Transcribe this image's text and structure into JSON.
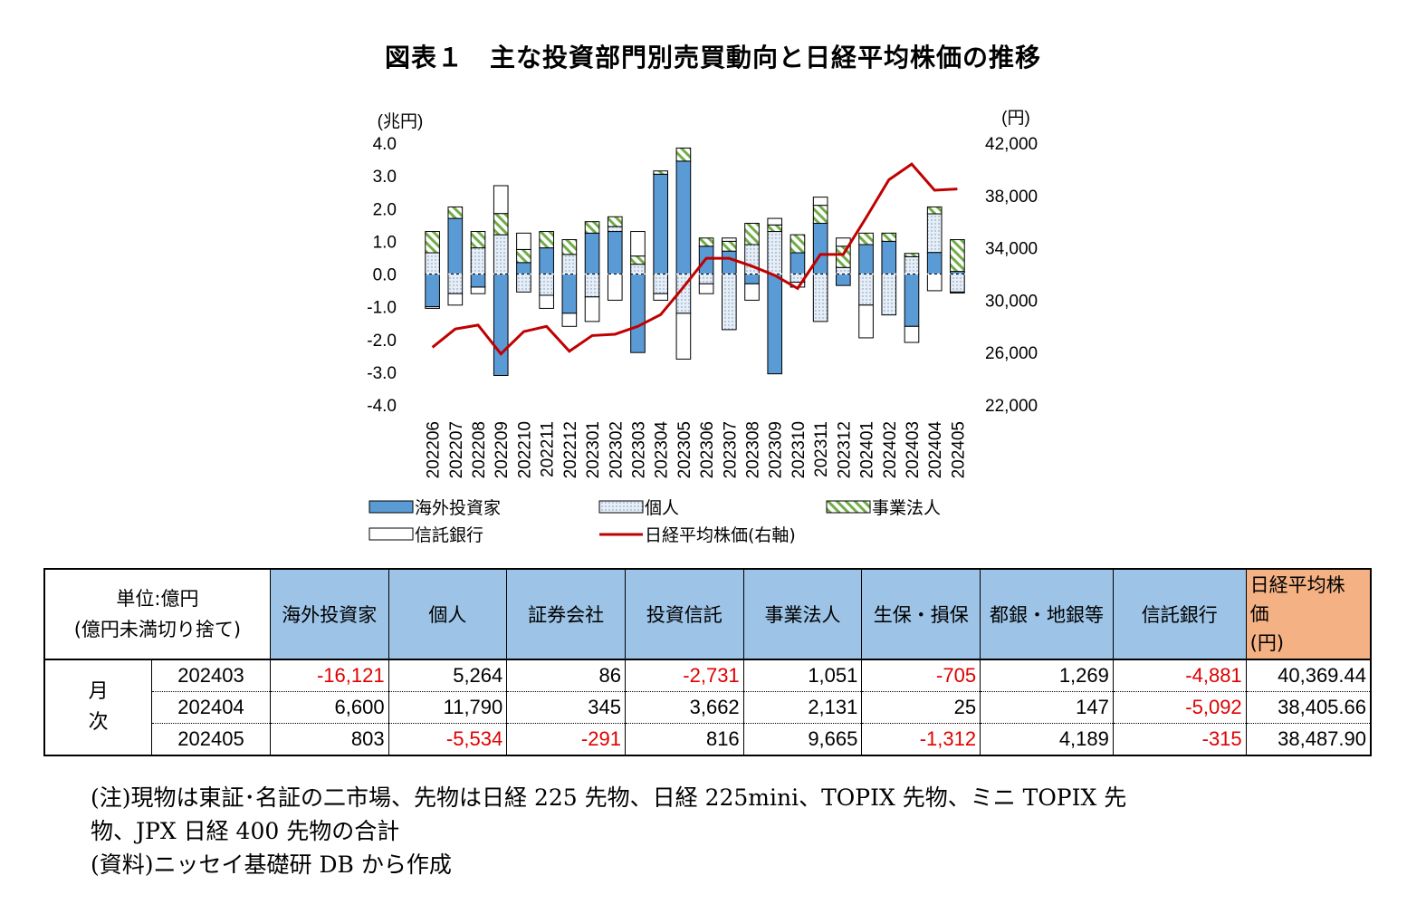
{
  "title": "図表１　主な投資部門別売買動向と日経平均株価の推移",
  "chart_data": {
    "type": "bar",
    "stacked": true,
    "y_left_unit": "(兆円)",
    "y_right_unit": "(円)",
    "ylim_left": [
      -4.0,
      4.0
    ],
    "ylim_right": [
      22000,
      42000
    ],
    "y_left_ticks": [
      "4.0",
      "3.0",
      "2.0",
      "1.0",
      "0.0",
      "-1.0",
      "-2.0",
      "-3.0",
      "-4.0"
    ],
    "y_right_ticks": [
      "42,000",
      "38,000",
      "34,000",
      "30,000",
      "26,000",
      "22,000"
    ],
    "categories": [
      "202206",
      "202207",
      "202208",
      "202209",
      "202210",
      "202211",
      "202212",
      "202301",
      "202302",
      "202303",
      "202304",
      "202305",
      "202306",
      "202307",
      "202308",
      "202309",
      "202310",
      "202311",
      "202312",
      "202401",
      "202402",
      "202403",
      "202404",
      "202405"
    ],
    "series": [
      {
        "name": "海外投資家",
        "kind": "bar",
        "color": "#5b9bd5",
        "values": [
          -1.0,
          1.7,
          -0.4,
          -3.1,
          0.35,
          0.8,
          -1.2,
          1.25,
          1.3,
          -2.4,
          3.05,
          3.45,
          0.85,
          0.7,
          -0.3,
          -3.05,
          0.65,
          1.55,
          -0.35,
          0.9,
          1.0,
          -1.6,
          0.66,
          0.08
        ]
      },
      {
        "name": "個人",
        "kind": "bar",
        "color": "#dbe7f3",
        "values": [
          0.65,
          -0.6,
          0.8,
          1.2,
          -0.55,
          -0.65,
          0.6,
          -0.7,
          0.15,
          0.3,
          -0.6,
          -1.2,
          -0.3,
          -1.7,
          0.9,
          1.3,
          -0.25,
          -1.45,
          0.2,
          -0.95,
          -1.25,
          0.53,
          1.18,
          -0.55
        ]
      },
      {
        "name": "事業法人",
        "kind": "bar",
        "color": "#70ad47",
        "values": [
          0.65,
          0.35,
          0.5,
          0.65,
          0.4,
          0.5,
          0.45,
          0.35,
          0.3,
          0.25,
          0.1,
          0.4,
          0.25,
          0.3,
          0.65,
          0.2,
          0.55,
          0.55,
          0.65,
          0.35,
          0.25,
          0.1,
          0.21,
          0.97
        ]
      },
      {
        "name": "信託銀行",
        "kind": "bar",
        "color": "#ffffff",
        "values": [
          -0.05,
          -0.35,
          -0.2,
          0.85,
          0.5,
          -0.4,
          -0.4,
          -0.75,
          -0.8,
          0.75,
          -0.2,
          -1.4,
          -0.3,
          0.1,
          -0.5,
          0.2,
          -0.15,
          0.25,
          0.25,
          -1.0,
          0.0,
          -0.49,
          -0.51,
          -0.03
        ]
      },
      {
        "name": "日経平均株価(右軸)",
        "kind": "line",
        "axis": "right",
        "color": "#c00000",
        "values": [
          26400,
          27800,
          28100,
          25900,
          27600,
          28000,
          26100,
          27300,
          27400,
          28000,
          28900,
          31000,
          33200,
          33200,
          32600,
          31900,
          30900,
          33500,
          33500,
          36300,
          39200,
          40400,
          38400,
          38500
        ]
      }
    ],
    "legend": [
      "海外投資家",
      "個人",
      "事業法人",
      "信託銀行",
      "日経平均株価(右軸)"
    ],
    "legend_position": "bottom"
  },
  "table": {
    "unit_label_1": "単位:億円",
    "unit_label_2": "(億円未満切り捨て)",
    "columns": [
      "海外投資家",
      "個人",
      "証券会社",
      "投資信託",
      "事業法人",
      "生保・損保",
      "都銀・地銀等",
      "信託銀行"
    ],
    "last_col_1": "日経平均株",
    "last_col_2": "価",
    "last_col_3": "(円)",
    "row_group_1": "月",
    "row_group_2": "次",
    "rows": [
      {
        "month": "202403",
        "cells": [
          "-16,121",
          "5,264",
          "86",
          "-2,731",
          "1,051",
          "-705",
          "1,269",
          "-4,881",
          "40,369.44"
        ]
      },
      {
        "month": "202404",
        "cells": [
          "6,600",
          "11,790",
          "345",
          "3,662",
          "2,131",
          "25",
          "147",
          "-5,092",
          "38,405.66"
        ]
      },
      {
        "month": "202405",
        "cells": [
          "803",
          "-5,534",
          "-291",
          "816",
          "9,665",
          "-1,312",
          "4,189",
          "-315",
          "38,487.90"
        ]
      }
    ]
  },
  "notes": {
    "line1": "(注)現物は東証･名証の二市場、先物は日経 225 先物、日経 225mini、TOPIX 先物、ミニ TOPIX 先",
    "line2": "物、JPX 日経 400 先物の合計",
    "line3": "(資料)ニッセイ基礎研 DB から作成"
  }
}
